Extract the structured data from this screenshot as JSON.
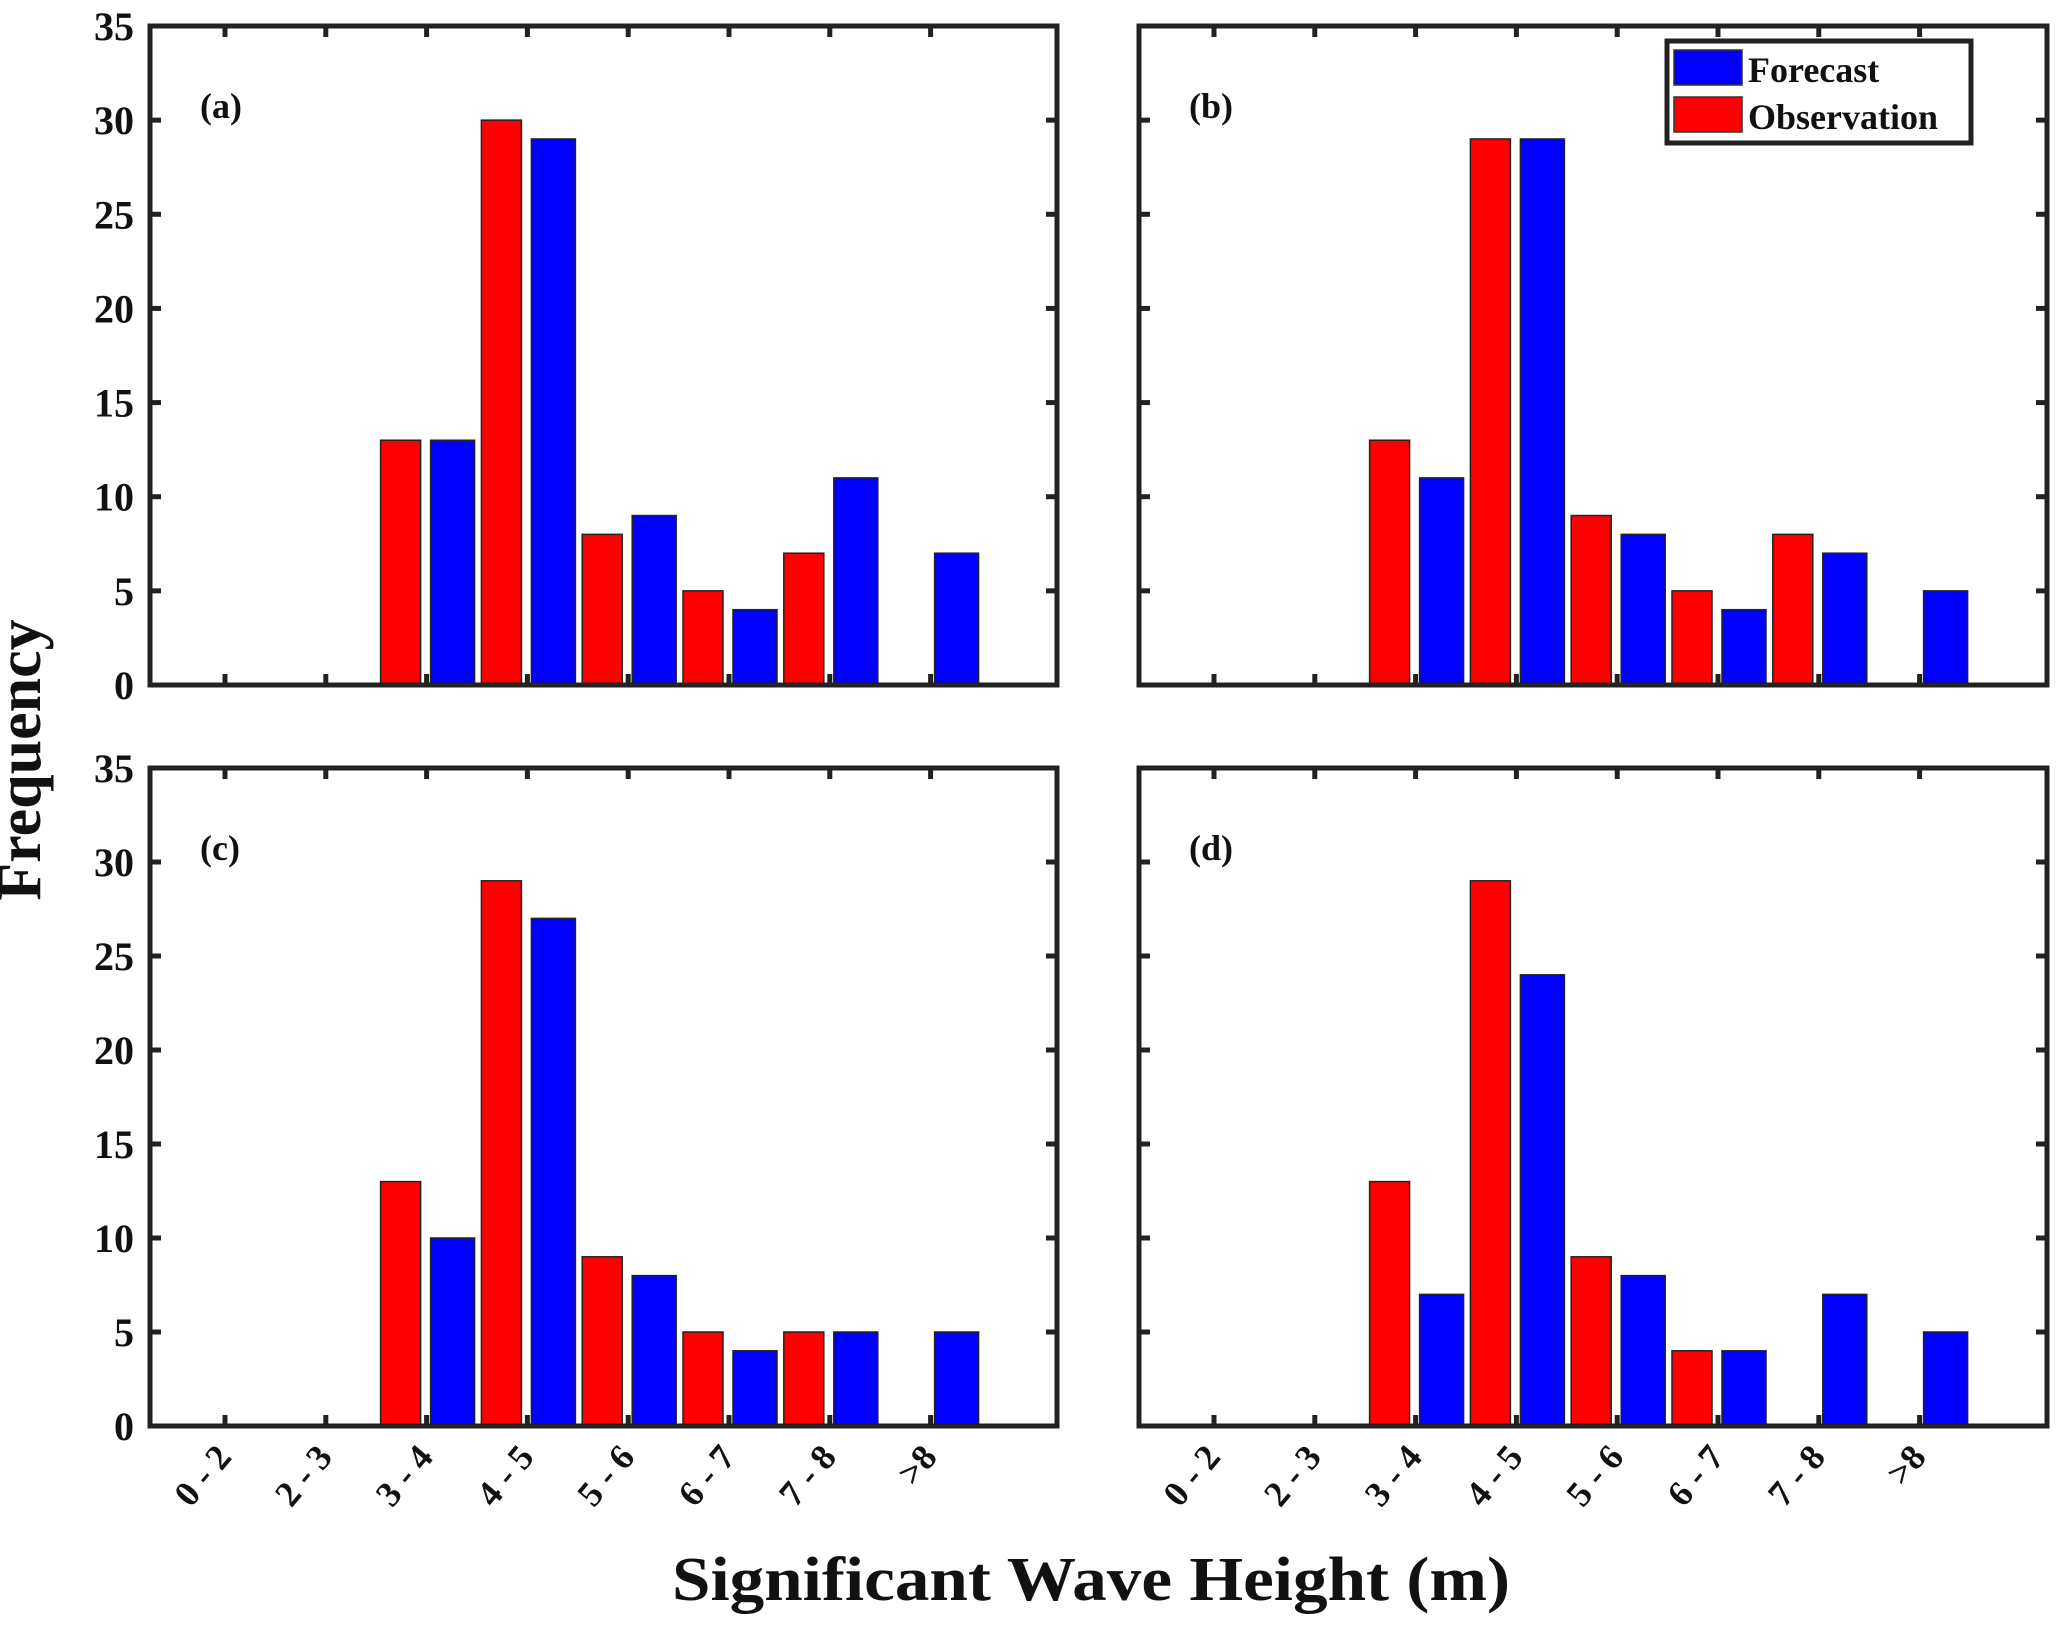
{
  "chart_data": {
    "type": "bar",
    "layout": "2x2 grid of subplots with shared axis titles",
    "xlabel": "Significant Wave Height (m)",
    "ylabel": "Frequency",
    "categories": [
      "0 - 2",
      "2 - 3",
      "3 - 4",
      "4 - 5",
      "5 - 6",
      "6 - 7",
      "7 - 8",
      ">8"
    ],
    "ylim": [
      0,
      35
    ],
    "yticks": [
      0,
      5,
      10,
      15,
      20,
      25,
      30,
      35
    ],
    "grid": false,
    "legend": {
      "placement": "top-right of panel (b)",
      "entries": [
        {
          "name": "Forecast",
          "color": "#0000ff"
        },
        {
          "name": "Observation",
          "color": "#ff0000"
        }
      ]
    },
    "panels": [
      {
        "label": "(a)",
        "series": [
          {
            "name": "Observation",
            "color": "#ff0000",
            "values": [
              0,
              0,
              13,
              30,
              8,
              5,
              7,
              0
            ]
          },
          {
            "name": "Forecast",
            "color": "#0000ff",
            "values": [
              0,
              0,
              13,
              29,
              9,
              4,
              11,
              7
            ]
          }
        ]
      },
      {
        "label": "(b)",
        "series": [
          {
            "name": "Observation",
            "color": "#ff0000",
            "values": [
              0,
              0,
              13,
              29,
              9,
              5,
              8,
              0
            ]
          },
          {
            "name": "Forecast",
            "color": "#0000ff",
            "values": [
              0,
              0,
              11,
              29,
              8,
              4,
              7,
              5
            ]
          }
        ]
      },
      {
        "label": "(c)",
        "series": [
          {
            "name": "Observation",
            "color": "#ff0000",
            "values": [
              0,
              0,
              13,
              29,
              9,
              5,
              5,
              0
            ]
          },
          {
            "name": "Forecast",
            "color": "#0000ff",
            "values": [
              0,
              0,
              10,
              27,
              8,
              4,
              5,
              5
            ]
          }
        ]
      },
      {
        "label": "(d)",
        "series": [
          {
            "name": "Observation",
            "color": "#ff0000",
            "values": [
              0,
              0,
              13,
              29,
              9,
              4,
              0,
              0
            ]
          },
          {
            "name": "Forecast",
            "color": "#0000ff",
            "values": [
              0,
              0,
              7,
              24,
              8,
              4,
              7,
              5
            ]
          }
        ]
      }
    ]
  }
}
